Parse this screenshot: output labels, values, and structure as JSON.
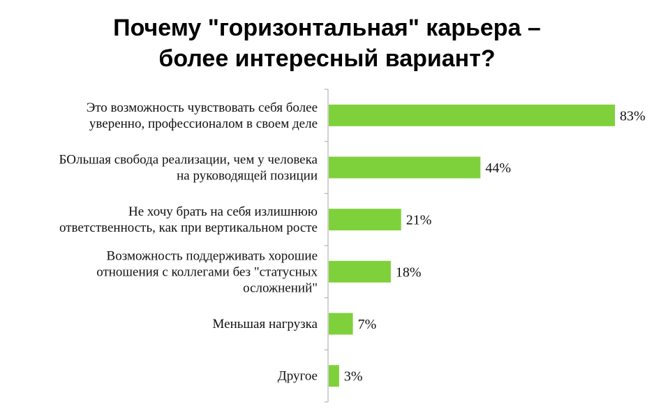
{
  "chart_data": {
    "type": "bar",
    "orientation": "horizontal",
    "title_lines": [
      "Почему \"горизонтальная\" карьера –",
      "более интересный вариант?"
    ],
    "categories": [
      [
        "Это возможность чувствовать себя более",
        "уверенно, профессионалом в своем деле"
      ],
      [
        "БОльшая свобода реализации, чем у человека",
        "на руководящей позиции"
      ],
      [
        "Не хочу брать на себя излишнюю",
        "ответственность, как при вертикальном росте"
      ],
      [
        "Возможность поддерживать хорошие",
        "отношения с коллегами без \"статусных",
        "осложнений\""
      ],
      [
        "Меньшая нагрузка"
      ],
      [
        "Другое"
      ]
    ],
    "values": [
      83,
      44,
      21,
      18,
      7,
      3
    ],
    "value_labels": [
      "83%",
      "44%",
      "21%",
      "18%",
      "7%",
      "3%"
    ],
    "bar_color": "#7fd13b",
    "axis_color": "#a6a6a6",
    "xlim": [
      0,
      83
    ],
    "grid": false,
    "legend": "none"
  }
}
